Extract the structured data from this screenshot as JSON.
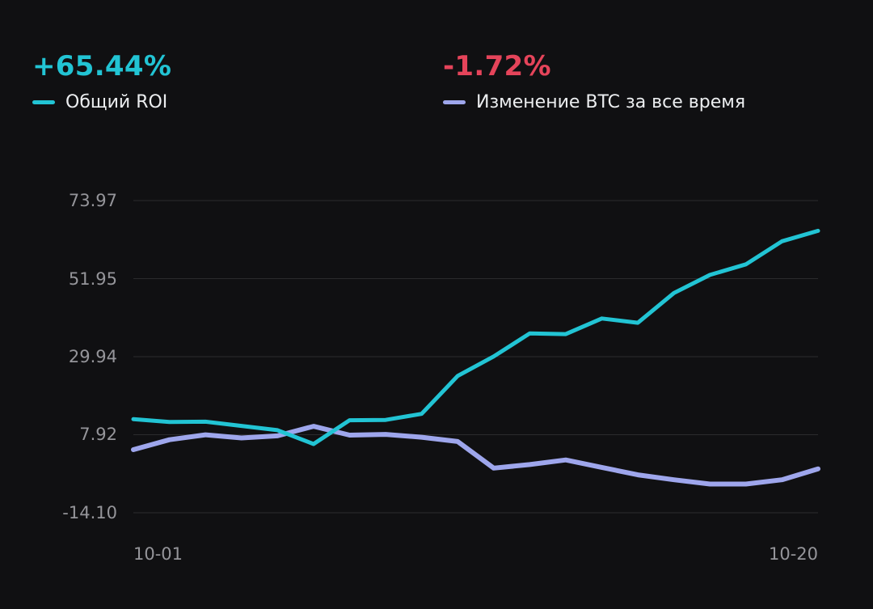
{
  "theme": {
    "background": "#101012",
    "grid": "#2b2b2d",
    "axis_text": "#95959a",
    "label_text": "#eceef0"
  },
  "header": {
    "roi": {
      "value": "+65.44%",
      "color": "#22c4d4"
    },
    "btc": {
      "value": "-1.72%",
      "color": "#e5445a"
    }
  },
  "chart_data": {
    "type": "line",
    "title": "",
    "xlabel": "",
    "ylabel": "",
    "grid": "horizontal",
    "legend_position": "top",
    "ylim": [
      -14.1,
      73.97
    ],
    "y_tick_labels": [
      "73.97",
      "51.95",
      "29.94",
      "7.92",
      "-14.10"
    ],
    "x_tick_labels": [
      "10-01",
      "10-20"
    ],
    "series": [
      {
        "name": "Общий ROI",
        "color": "#22c4d4",
        "stroke_width": 5,
        "values": [
          12.3,
          11.5,
          11.6,
          10.4,
          9.2,
          5.3,
          12.0,
          12.1,
          13.8,
          24.5,
          30.0,
          36.5,
          36.3,
          40.7,
          39.5,
          47.9,
          53.0,
          56.0,
          62.5,
          65.44
        ]
      },
      {
        "name": "Изменение BTC за все время",
        "color": "#9ea6ec",
        "stroke_width": 6,
        "values": [
          3.7,
          6.5,
          7.9,
          7.0,
          7.6,
          10.3,
          7.8,
          8.0,
          7.2,
          6.0,
          -1.5,
          -0.5,
          0.8,
          -1.3,
          -3.4,
          -4.8,
          -6.0,
          -6.0,
          -4.8,
          -1.72
        ]
      }
    ]
  }
}
